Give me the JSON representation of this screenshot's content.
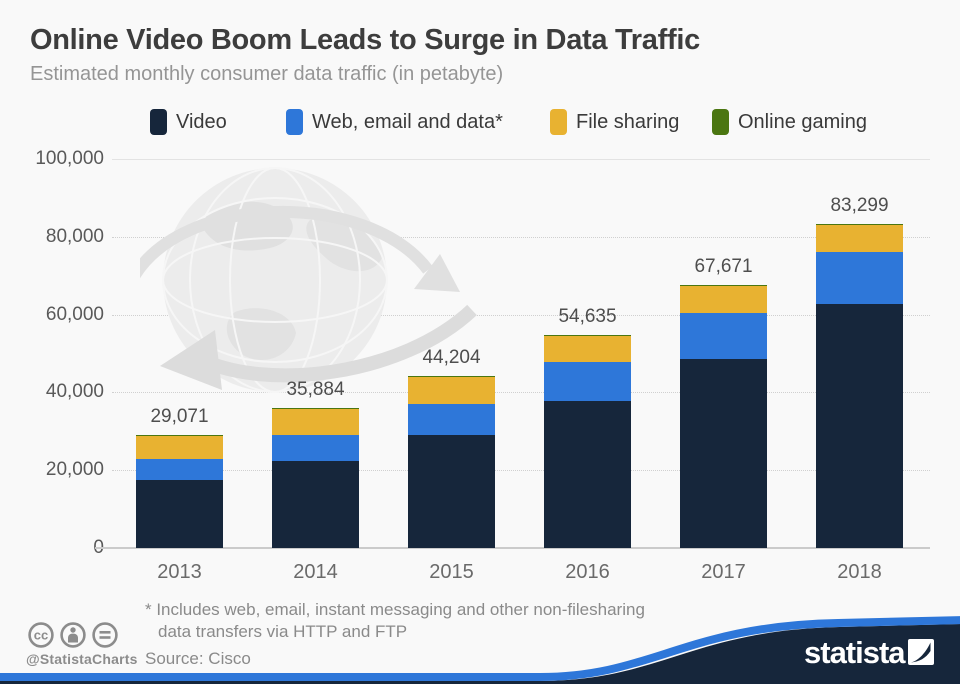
{
  "header": {
    "title": "Online Video Boom Leads to Surge in Data Traffic",
    "subtitle": "Estimated monthly consumer data traffic (in petabyte)"
  },
  "chart_data": {
    "type": "bar",
    "stacked": true,
    "title": "Online Video Boom Leads to Surge in Data Traffic",
    "subtitle": "Estimated monthly consumer data traffic (in petabyte)",
    "unit": "petabyte per month",
    "categories": [
      "2013",
      "2014",
      "2015",
      "2016",
      "2017",
      "2018"
    ],
    "series": [
      {
        "name": "Video",
        "color": "#16263b",
        "values": [
          17500,
          22300,
          29100,
          37800,
          48600,
          62700
        ]
      },
      {
        "name": "Web, email and data*",
        "color": "#2e77d9",
        "values": [
          5400,
          6700,
          7900,
          10000,
          11700,
          13400
        ]
      },
      {
        "name": "File sharing",
        "color": "#e8b231",
        "values": [
          6100,
          6800,
          7100,
          6700,
          7200,
          7000
        ]
      },
      {
        "name": "Online gaming",
        "color": "#4b7611",
        "values": [
          71,
          84,
          104,
          135,
          171,
          199
        ]
      }
    ],
    "totals": [
      29071,
      35884,
      44204,
      54635,
      67671,
      83299
    ],
    "total_labels": [
      "29,071",
      "35,884",
      "44,204",
      "54,635",
      "67,671",
      "83,299"
    ],
    "ylim": [
      0,
      100000
    ],
    "yticks": [
      100000,
      80000,
      60000,
      40000,
      20000,
      0
    ],
    "ytick_labels": [
      "100,000",
      "80,000",
      "60,000",
      "40,000",
      "20,000",
      "0"
    ],
    "grid": "horizontal-dotted",
    "legend_position": "top",
    "values_note": "series values estimated from bar segment heights; totals are labeled on chart"
  },
  "footer": {
    "footnote_line1": "* Includes web, email, instant messaging and other non-filesharing",
    "footnote_line2": "data transfers via HTTP and FTP",
    "source": "Source: Cisco",
    "credit": "@StatistaCharts",
    "cc_text": "cc",
    "license_icons": [
      "cc-icon",
      "attribution-icon",
      "no-derivatives-icon"
    ]
  },
  "branding": {
    "logo_text": "statista",
    "logo_mark_icon": "statista-logo-mark",
    "wedge_color": "#16263b",
    "stripe_color": "#2e77d9"
  },
  "watermark": {
    "icon": "globe-watermark-icon"
  }
}
